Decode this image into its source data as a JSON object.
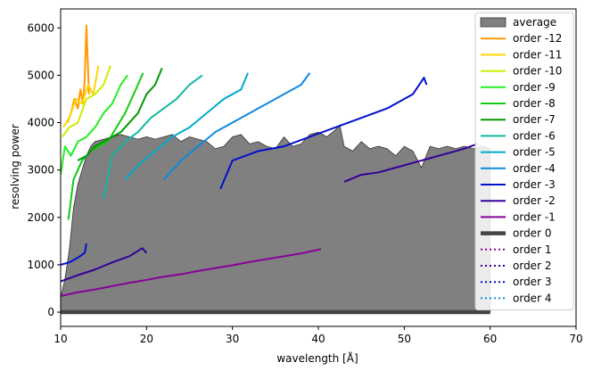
{
  "chart_data": {
    "type": "line",
    "xlabel": "wavelength [Å]",
    "ylabel": "resolving power",
    "xlim": [
      10,
      70
    ],
    "ylim": [
      -300,
      6400
    ],
    "x_ticks": [
      10,
      20,
      30,
      40,
      50,
      60,
      70
    ],
    "y_ticks": [
      0,
      1000,
      2000,
      3000,
      4000,
      5000,
      6000
    ],
    "x_tick_labels": [
      "10",
      "20",
      "30",
      "40",
      "50",
      "60",
      "70"
    ],
    "y_tick_labels": [
      "0",
      "1000",
      "2000",
      "3000",
      "4000",
      "5000",
      "6000"
    ],
    "grid": false,
    "legend_position": "upper-right",
    "average": {
      "name": "average",
      "color": "#808080",
      "x": [
        10,
        10.5,
        11,
        11.5,
        12,
        12.5,
        13,
        13.5,
        14,
        15,
        16,
        17,
        18,
        19,
        20,
        21,
        22,
        23,
        24,
        25,
        26,
        27,
        28,
        29,
        30,
        31,
        32,
        33,
        34,
        35,
        36,
        37,
        38,
        39,
        40,
        41,
        42,
        42.5,
        43,
        44,
        45,
        46,
        47,
        48,
        49,
        50,
        51,
        52,
        53,
        54,
        55,
        56,
        57,
        58,
        59,
        60
      ],
      "values": [
        300,
        700,
        1300,
        2200,
        2700,
        3000,
        3300,
        3500,
        3600,
        3650,
        3700,
        3750,
        3700,
        3650,
        3700,
        3650,
        3700,
        3750,
        3600,
        3700,
        3650,
        3600,
        3450,
        3500,
        3700,
        3750,
        3550,
        3600,
        3500,
        3450,
        3700,
        3500,
        3550,
        3750,
        3800,
        3700,
        3850,
        3950,
        3500,
        3400,
        3600,
        3450,
        3500,
        3450,
        3300,
        3500,
        3400,
        3050,
        3500,
        3450,
        3500,
        3450,
        3500,
        3450,
        3500,
        3450
      ]
    },
    "series": [
      {
        "name": "order -12",
        "color": "#ff9900",
        "style": "solid",
        "x": [
          10.8,
          11.2,
          11.6,
          12.0,
          12.3,
          12.6,
          12.8,
          13.0,
          13.3
        ],
        "values": [
          4000,
          4200,
          4500,
          4300,
          4700,
          4400,
          4900,
          6050,
          4600
        ]
      },
      {
        "name": "order -11",
        "color": "#ffd700",
        "style": "solid",
        "x": [
          10.3,
          11.0,
          11.8,
          12.5,
          13.2,
          13.8,
          14.4
        ],
        "values": [
          3900,
          4100,
          4500,
          4400,
          4800,
          4600,
          5200
        ]
      },
      {
        "name": "order -10",
        "color": "#ccee00",
        "style": "solid",
        "x": [
          10.2,
          11.0,
          12.0,
          13.0,
          14.0,
          15.0,
          15.8
        ],
        "values": [
          3700,
          3900,
          4000,
          4500,
          4600,
          4800,
          5200
        ]
      },
      {
        "name": "order -9",
        "color": "#22ee22",
        "style": "solid",
        "x": [
          10.0,
          10.5,
          11.2,
          12.0,
          13.0,
          14.0,
          15.0,
          16.0,
          17.0,
          17.8
        ],
        "values": [
          2900,
          3500,
          3300,
          3600,
          3700,
          3900,
          4200,
          4400,
          4800,
          5000
        ]
      },
      {
        "name": "order -8",
        "color": "#11cc11",
        "style": "solid",
        "x": [
          10.9,
          11.5,
          12.5,
          13.5,
          14.5,
          15.5,
          16.5,
          17.5,
          18.5,
          19.6
        ],
        "values": [
          1950,
          2800,
          3200,
          3400,
          3500,
          3600,
          3900,
          4200,
          4600,
          5050
        ]
      },
      {
        "name": "order -7",
        "color": "#009900",
        "style": "solid",
        "x": [
          12.0,
          13.0,
          14.0,
          15.0,
          16.0,
          17.0,
          18.0,
          19.0,
          20.0,
          21.0,
          21.8
        ],
        "values": [
          3200,
          3300,
          3500,
          3600,
          3700,
          3800,
          4000,
          4200,
          4600,
          4800,
          5150
        ]
      },
      {
        "name": "order -6",
        "color": "#11b8a0",
        "style": "solid",
        "x": [
          15.0,
          16.0,
          17.5,
          19.0,
          20.5,
          22.0,
          23.5,
          25.0,
          26.5
        ],
        "values": [
          2400,
          3300,
          3600,
          3800,
          4100,
          4300,
          4500,
          4800,
          5000
        ]
      },
      {
        "name": "order -5",
        "color": "#00aacc",
        "style": "solid",
        "x": [
          17.5,
          19.0,
          21.0,
          23.0,
          25.0,
          27.0,
          29.0,
          31.0,
          31.8
        ],
        "values": [
          2800,
          3100,
          3400,
          3700,
          3900,
          4200,
          4500,
          4700,
          5050
        ]
      },
      {
        "name": "order -4",
        "color": "#1188dd",
        "style": "solid",
        "x": [
          22.0,
          24.0,
          26.0,
          28.0,
          30.0,
          32.0,
          34.0,
          36.0,
          38.0,
          39.0
        ],
        "values": [
          2800,
          3200,
          3500,
          3800,
          4000,
          4200,
          4400,
          4600,
          4800,
          5050
        ]
      },
      {
        "name": "order -3",
        "color": "#0011cc",
        "style": "solid",
        "x": [
          28.6,
          30.0,
          33.0,
          36.0,
          39.0,
          42.0,
          45.0,
          48.0,
          51.0,
          52.3,
          52.6
        ],
        "values": [
          2600,
          3200,
          3400,
          3500,
          3700,
          3900,
          4100,
          4300,
          4600,
          4950,
          4800
        ]
      },
      {
        "name": "order -2",
        "color": "#330099",
        "style": "solid",
        "x": [
          43.0,
          45.0,
          47.0,
          49.0,
          51.0,
          53.0,
          55.0,
          57.0,
          58.5
        ],
        "values": [
          2750,
          2900,
          2950,
          3050,
          3150,
          3250,
          3350,
          3450,
          3550
        ]
      },
      {
        "name": "order -1",
        "color": "#880099",
        "style": "solid",
        "x": [
          10.0,
          12.0,
          14.0,
          16.0,
          18.0,
          20.0,
          22.0,
          24.0,
          26.0,
          28.0,
          30.0,
          32.0,
          34.0,
          36.0,
          38.0,
          40.3
        ],
        "values": [
          340,
          420,
          480,
          550,
          620,
          680,
          750,
          800,
          870,
          930,
          990,
          1060,
          1120,
          1180,
          1240,
          1330
        ]
      },
      {
        "name": "order -2",
        "color": "#330099",
        "style": "solid",
        "x": [
          10.0,
          12.0,
          14.0,
          16.0,
          18.0,
          19.5,
          20.0
        ],
        "values": [
          650,
          780,
          900,
          1050,
          1180,
          1350,
          1250
        ]
      },
      {
        "name": "order -3",
        "color": "#0011cc",
        "style": "solid",
        "x": [
          10.0,
          11.0,
          12.0,
          12.8,
          13.0
        ],
        "values": [
          1000,
          1050,
          1150,
          1250,
          1450
        ]
      },
      {
        "name": "order 0",
        "color": "#444444",
        "style": "thick",
        "x": [
          10,
          60
        ],
        "values": [
          0,
          0
        ]
      },
      {
        "name": "order 1",
        "color": "#880099",
        "style": "dotted",
        "x": [],
        "values": []
      },
      {
        "name": "order 2",
        "color": "#330099",
        "style": "dotted",
        "x": [],
        "values": []
      },
      {
        "name": "order 3",
        "color": "#0011cc",
        "style": "dotted",
        "x": [],
        "values": []
      },
      {
        "name": "order 4",
        "color": "#1188dd",
        "style": "dotted",
        "x": [],
        "values": []
      }
    ],
    "legend": [
      {
        "label": "average",
        "color": "#808080",
        "kind": "patch"
      },
      {
        "label": "order -12",
        "color": "#ff9900",
        "kind": "solid"
      },
      {
        "label": "order -11",
        "color": "#ffd700",
        "kind": "solid"
      },
      {
        "label": "order -10",
        "color": "#ccee00",
        "kind": "solid"
      },
      {
        "label": "order -9",
        "color": "#22ee22",
        "kind": "solid"
      },
      {
        "label": "order -8",
        "color": "#11cc11",
        "kind": "solid"
      },
      {
        "label": "order -7",
        "color": "#009900",
        "kind": "solid"
      },
      {
        "label": "order -6",
        "color": "#11b8a0",
        "kind": "solid"
      },
      {
        "label": "order -5",
        "color": "#00aacc",
        "kind": "solid"
      },
      {
        "label": "order -4",
        "color": "#1188dd",
        "kind": "solid"
      },
      {
        "label": "order -3",
        "color": "#0011cc",
        "kind": "solid"
      },
      {
        "label": "order -2",
        "color": "#330099",
        "kind": "solid"
      },
      {
        "label": "order -1",
        "color": "#880099",
        "kind": "solid"
      },
      {
        "label": "order 0",
        "color": "#444444",
        "kind": "thick"
      },
      {
        "label": "order 1",
        "color": "#880099",
        "kind": "dotted"
      },
      {
        "label": "order 2",
        "color": "#330099",
        "kind": "dotted"
      },
      {
        "label": "order 3",
        "color": "#0011cc",
        "kind": "dotted"
      },
      {
        "label": "order 4",
        "color": "#1188dd",
        "kind": "dotted"
      }
    ]
  }
}
